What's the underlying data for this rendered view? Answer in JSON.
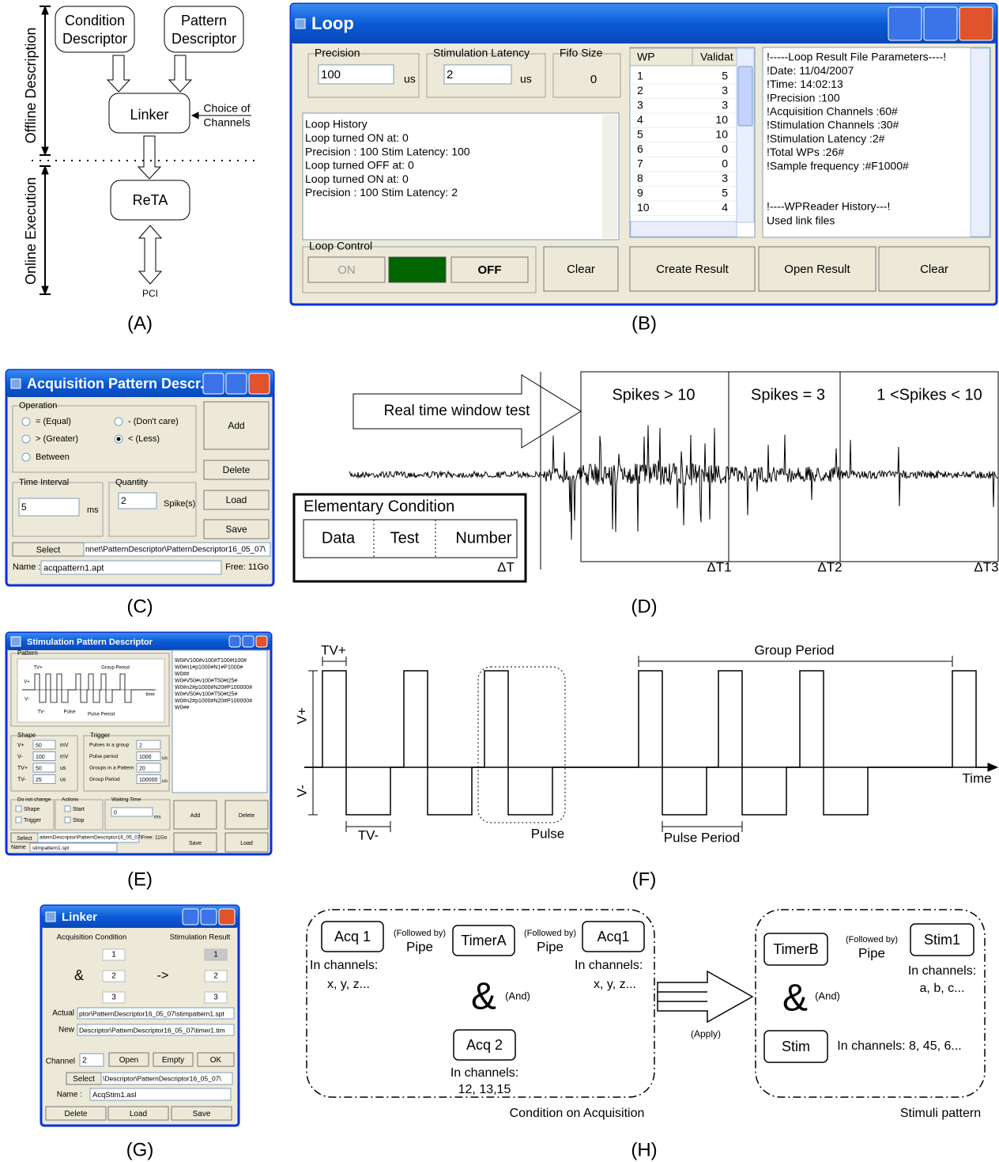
{
  "panel_labels": [
    "(A)",
    "(B)",
    "(C)",
    "(D)",
    "(E)",
    "(F)",
    "(G)",
    "(H)"
  ],
  "a": {
    "condition_descriptor": [
      "Condition",
      "Descriptor"
    ],
    "pattern_descriptor": [
      "Pattern",
      "Descriptor"
    ],
    "linker": "Linker",
    "choice_of_channels": [
      "Choice of",
      "Channels"
    ],
    "reta": "ReTA",
    "pci": "PCI",
    "offline": "Offline Description",
    "online": "Online Execution"
  },
  "b": {
    "title": "Loop",
    "precision_label": "Precision",
    "precision_value": 100,
    "us": "us",
    "stim_latency_label": "Stimulation Latency",
    "stim_latency_value": 2,
    "fifo_label": "Fifo Size",
    "fifo_value": 0,
    "history": [
      "Loop History",
      "Loop turned ON  at: 0",
      "Precision  : 100    Stim Latency: 100",
      "Loop turned OFF at: 0",
      "Loop turned ON  at: 0",
      "Precision  : 100    Stim Latency: 2"
    ],
    "loop_control": "Loop Control",
    "on": "ON",
    "off": "OFF",
    "clear": "Clear",
    "wp_header": [
      "WP",
      "Validat"
    ],
    "wp_rows": [
      [
        1,
        5
      ],
      [
        2,
        3
      ],
      [
        3,
        3
      ],
      [
        4,
        10
      ],
      [
        5,
        10
      ],
      [
        6,
        0
      ],
      [
        7,
        0
      ],
      [
        8,
        3
      ],
      [
        9,
        5
      ],
      [
        10,
        4
      ]
    ],
    "result_lines": [
      "!-----Loop Result File Parameters----!",
      "!Date: 11/04/2007",
      "!Time: 14:02:13",
      "!Precision :100",
      "!Acquisition Channels :60#",
      "!Stimulation Channels :30#",
      "!Stimulation Latency  :2#",
      "!Total WPs :26#",
      "!Sample frequency :#F1000#",
      "!----WPReader History---!",
      "Used link files"
    ],
    "create_result": "Create Result",
    "open_result": "Open Result"
  },
  "c": {
    "title": "Acquisition Pattern Descr...",
    "operation": "Operation",
    "options": [
      "= (Equal)",
      "- (Don't care)",
      "> (Greater)",
      "< (Less)",
      "Between"
    ],
    "add": "Add",
    "delete": "Delete",
    "load": "Load",
    "save": "Save",
    "time_interval": "Time Interval",
    "time_value": 5,
    "ms": "ms",
    "quantity": "Quantity",
    "quantity_value": 2,
    "spikes": "Spike(s)",
    "select": "Select",
    "path": "nnet\\PatternDescriptor\\PatternDescriptor16_05_07\\",
    "name_label": "Name :",
    "name_value": "acqpattern1.apt",
    "free": "Free: 11Go"
  },
  "d": {
    "arrow": "Real time window test",
    "windows": [
      "Spikes > 10",
      "Spikes = 3",
      "1 <Spikes < 10"
    ],
    "deltas": [
      "ΔT1",
      "ΔT2",
      "ΔT3"
    ],
    "elementary": "Elementary Condition",
    "cells": [
      "Data",
      "Test",
      "Number"
    ],
    "delta": "ΔT"
  },
  "e": {
    "title": "Stimulation Pattern Descriptor",
    "pattern": "Pattern",
    "mini": [
      "TV+",
      "Group Period",
      "V+",
      "V-",
      "time",
      "TV-",
      "Pulse",
      "Pulse Period"
    ],
    "code_lines": [
      "W0#V100#v100#T100#t100#",
      "W0#n1#p1000#N1#P1000#",
      "W0##",
      "W0#V50#v100#T50#t25#",
      "W0#n2#p1000#N20#P100000#",
      "W0#V50#v100#T50#t25#",
      "W0#n2#p1000#N20#P100000#",
      "W0##"
    ],
    "shape": "Shape",
    "shape_rows": [
      [
        "V+",
        50,
        "mV"
      ],
      [
        "V-",
        100,
        "mV"
      ],
      [
        "TV+",
        50,
        "us"
      ],
      [
        "TV-",
        25,
        "us"
      ]
    ],
    "trigger": "Trigger",
    "trigger_rows": [
      [
        "Pulses in a group",
        2
      ],
      [
        "Pulse period",
        1000,
        "us"
      ],
      [
        "Groups in a Pattern",
        20
      ],
      [
        "Group Period",
        100000,
        "us"
      ]
    ],
    "do_not_change": "Do not change",
    "dnc_items": [
      "Shape",
      "Trigger"
    ],
    "actions": "Actions",
    "action_items": [
      "Start",
      "Stop"
    ],
    "waiting_time": "Waiting Time",
    "waiting_value": 0,
    "ms": "ms",
    "add": "Add",
    "delete": "Delete",
    "save": "Save",
    "load": "Load",
    "select": "Select",
    "path": "atternDescriptor\\PatternDescriptor16_05_07\\",
    "free": "Free: 11Go",
    "name_label": "Name",
    "name_value": "stimpattern1.spt"
  },
  "f": {
    "tv_plus": "TV+",
    "group_period": "Group Period",
    "v_plus": "V+",
    "v_minus": "V-",
    "time": "Time",
    "tv_minus": "TV-",
    "pulse": "Pulse",
    "pulse_period": "Pulse Period"
  },
  "g": {
    "title": "Linker",
    "acq": "Acquisition Condition",
    "stim": "Stimulation Result",
    "left": [
      1,
      2,
      3
    ],
    "right": [
      1,
      2,
      3
    ],
    "and": "&",
    "arrow": "->",
    "actual_label": "Actual",
    "actual_path": "ptor\\PatternDescriptor16_05_07\\stimpattern1.spt",
    "new_label": "New",
    "new_path": "Descriptor\\PatternDescriptor16_05_07\\timer1.tim",
    "channel_label": "Channel",
    "channel_value": 2,
    "open": "Open",
    "empty": "Empty",
    "ok": "OK",
    "select": "Select",
    "select_path": "\\Descriptor\\PatternDescriptor16_05_07\\",
    "name_label": "Name :",
    "name_value": "AcqStim1.asl",
    "delete": "Delete",
    "load": "Load",
    "save": "Save"
  },
  "h": {
    "acq1": "Acq 1",
    "followed_by": "(Followed by)",
    "pipe": "Pipe",
    "timer_a": "TimerA",
    "acq1b": "Acq1",
    "in_channels": "In channels:",
    "xyz": "x, y, z...",
    "amp": "&",
    "and": "(And)",
    "acq2": "Acq 2",
    "acq2_channels": "12, 13,15",
    "condition": "Condition on Acquisition",
    "apply": "(Apply)",
    "timer_b": "TimerB",
    "stim1": "Stim1",
    "abc": "a, b, c...",
    "stim": "Stim",
    "stim_channels": "In channels: 8, 45, 6...",
    "stimuli": "Stimuli pattern"
  }
}
